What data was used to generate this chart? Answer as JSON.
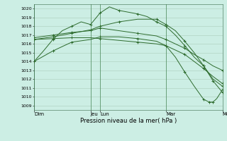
{
  "xlabel": "Pression niveau de la mer( hPa )",
  "bg_color": "#cceee4",
  "grid_color": "#aaccbb",
  "line_color": "#2d6b2d",
  "yticks": [
    1009,
    1010,
    1011,
    1012,
    1013,
    1014,
    1015,
    1016,
    1017,
    1018,
    1019,
    1020
  ],
  "ylim_lo": 1008.5,
  "ylim_hi": 1020.5,
  "xlim_lo": 0,
  "xlim_hi": 10.0,
  "vlines": [
    0,
    3.0,
    3.5,
    7.0,
    10.0
  ],
  "day_labels": [
    "Dim",
    "Jeu",
    "Lun",
    "Mar",
    "Mer"
  ],
  "day_positions": [
    0,
    3.0,
    3.5,
    7.0,
    10.0
  ],
  "series1_x": [
    0,
    0.5,
    1.0,
    1.5,
    2.0,
    2.5,
    3.0,
    3.5,
    4.0,
    4.5,
    5.0,
    5.5,
    6.0,
    6.5,
    7.0,
    7.5,
    8.0,
    8.5,
    9.0,
    9.5,
    10.0
  ],
  "series1_y": [
    1014.0,
    1015.2,
    1016.5,
    1017.5,
    1018.0,
    1018.5,
    1018.2,
    1019.5,
    1020.2,
    1019.8,
    1019.6,
    1019.4,
    1019.1,
    1018.5,
    1018.0,
    1017.0,
    1015.8,
    1014.5,
    1013.5,
    1012.0,
    1011.2
  ],
  "series1_mx": [
    0,
    1.0,
    2.0,
    3.0,
    3.5,
    4.5,
    5.5,
    6.5,
    7.0,
    8.0,
    9.0,
    10.0
  ],
  "series1_my": [
    1014.0,
    1016.5,
    1018.0,
    1018.2,
    1019.5,
    1019.8,
    1019.4,
    1018.5,
    1018.0,
    1015.8,
    1013.5,
    1011.2
  ],
  "series2_x": [
    0,
    1.0,
    2.0,
    3.0,
    3.5,
    4.5,
    5.5,
    6.5,
    7.0,
    7.5,
    8.0,
    8.5,
    9.0,
    9.5,
    10.0
  ],
  "series2_y": [
    1016.7,
    1017.0,
    1017.3,
    1017.5,
    1017.8,
    1017.5,
    1017.2,
    1016.9,
    1016.5,
    1016.0,
    1015.5,
    1014.8,
    1014.2,
    1013.5,
    1013.0
  ],
  "series2_mx": [
    0,
    1.0,
    2.0,
    3.0,
    3.5,
    5.5,
    7.0,
    8.0,
    9.0,
    10.0
  ],
  "series2_my": [
    1016.7,
    1017.0,
    1017.3,
    1017.5,
    1017.8,
    1017.2,
    1016.5,
    1015.5,
    1014.2,
    1013.0
  ],
  "series3_x": [
    0,
    1.0,
    2.0,
    3.0,
    3.5,
    4.5,
    5.5,
    6.5,
    7.0,
    7.5,
    8.0,
    8.5,
    9.0,
    9.5,
    10.0
  ],
  "series3_y": [
    1016.5,
    1016.6,
    1016.7,
    1016.7,
    1016.6,
    1016.4,
    1016.2,
    1016.0,
    1015.8,
    1015.3,
    1014.8,
    1014.0,
    1013.2,
    1012.3,
    1011.5
  ],
  "series3_mx": [
    0,
    1.0,
    2.0,
    3.5,
    5.5,
    7.0,
    8.0,
    9.0,
    10.0
  ],
  "series3_my": [
    1016.5,
    1016.6,
    1016.7,
    1016.6,
    1016.2,
    1015.8,
    1014.8,
    1013.2,
    1011.5
  ],
  "series4_x": [
    0,
    1.0,
    2.0,
    3.0,
    3.5,
    4.5,
    5.5,
    6.5,
    7.0,
    7.5,
    8.0,
    8.5,
    9.0,
    9.5,
    10.0
  ],
  "series4_y": [
    1016.5,
    1016.8,
    1017.2,
    1017.6,
    1018.0,
    1018.5,
    1018.8,
    1018.8,
    1018.2,
    1017.5,
    1016.3,
    1015.0,
    1013.5,
    1011.8,
    1010.5
  ],
  "series4_mx": [
    0,
    1.0,
    2.0,
    3.5,
    4.5,
    6.5,
    7.0,
    8.0,
    9.0,
    9.5,
    10.0
  ],
  "series4_my": [
    1016.5,
    1016.8,
    1017.2,
    1018.0,
    1018.5,
    1018.8,
    1018.2,
    1016.3,
    1013.5,
    1011.8,
    1010.5
  ],
  "series5_x": [
    0,
    1.0,
    2.0,
    3.0,
    3.5,
    4.5,
    5.5,
    6.5,
    7.0,
    7.5,
    8.0,
    8.5,
    9.0,
    9.3,
    9.5,
    9.7,
    10.0
  ],
  "series5_y": [
    1014.0,
    1015.2,
    1016.2,
    1016.5,
    1016.8,
    1016.8,
    1016.6,
    1016.3,
    1015.8,
    1014.5,
    1012.8,
    1011.2,
    1009.7,
    1009.4,
    1009.4,
    1009.8,
    1010.8
  ],
  "series5_mx": [
    0,
    1.0,
    2.0,
    3.5,
    5.5,
    7.0,
    8.0,
    9.0,
    9.3,
    9.5,
    10.0
  ],
  "series5_my": [
    1014.0,
    1015.2,
    1016.2,
    1016.8,
    1016.6,
    1015.8,
    1012.8,
    1009.7,
    1009.4,
    1009.4,
    1010.8
  ]
}
